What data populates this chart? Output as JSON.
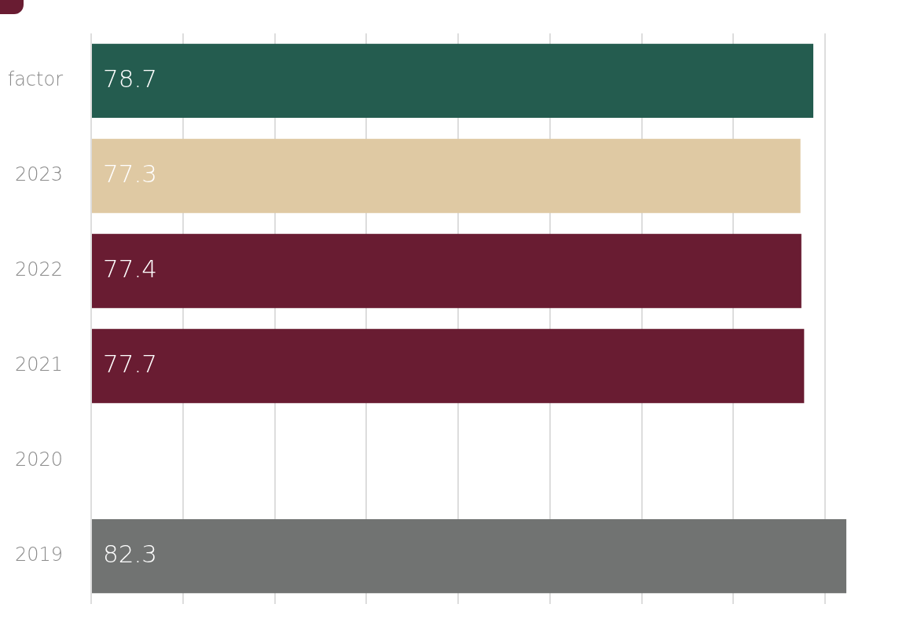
{
  "chart_data": {
    "type": "bar",
    "orientation": "horizontal",
    "categories": [
      "factor",
      "2023",
      "2022",
      "2021",
      "2020",
      "2019"
    ],
    "values": [
      78.7,
      77.3,
      77.4,
      77.7,
      null,
      82.3
    ],
    "colors": [
      "#245c4f",
      "#dfc9a3",
      "#691c32",
      "#691c32",
      "#691c32",
      "#717372"
    ],
    "xticks": [
      {
        "value": 0,
        "label": null
      },
      {
        "value": 10,
        "label": null
      },
      {
        "value": 20,
        "label": null
      },
      {
        "value": 30,
        "label": null
      },
      {
        "value": 40,
        "label": null
      },
      {
        "value": 50,
        "label": null
      },
      {
        "value": 60,
        "label": null
      },
      {
        "value": 70,
        "label": null
      },
      {
        "value": 80,
        "label": null
      }
    ],
    "tick_labels": "y",
    "grid": "x",
    "legend": false,
    "data_labels": true
  }
}
